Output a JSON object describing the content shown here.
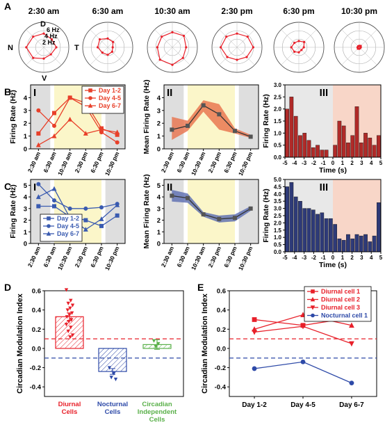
{
  "panel_letters": {
    "A": "A",
    "B": "B",
    "C": "C",
    "D": "D",
    "E": "E"
  },
  "panel_A": {
    "times": [
      "2:30 am",
      "6:30 am",
      "10:30 am",
      "2:30 pm",
      "6:30 pm",
      "10:30 pm"
    ],
    "directions": {
      "D": "D",
      "V": "V",
      "N": "N",
      "T": "T"
    },
    "rings": [
      "6 Hz",
      "4 Hz",
      "2 Hz"
    ],
    "color": "#e8202a"
  },
  "chart_data": [
    {
      "id": "B-I",
      "type": "line",
      "roman": "I",
      "ylabel": "Firing Rate (Hz)",
      "ylim": [
        0,
        5
      ],
      "yticks": [
        "0",
        "1",
        "2",
        "3",
        "4"
      ],
      "categories": [
        "2:30 am",
        "6:30 am",
        "10:30 am",
        "2:30 pm",
        "6:30 pm",
        "10:30 pm"
      ],
      "series": [
        {
          "name": "Day 1-2",
          "marker": "square",
          "color": "#e8402a",
          "values": [
            1.2,
            2.8,
            4.0,
            3.6,
            1.6,
            1.1
          ]
        },
        {
          "name": "Day 4-5",
          "marker": "circle",
          "color": "#e8402a",
          "values": [
            3.0,
            1.8,
            4.0,
            3.3,
            1.3,
            0.5
          ]
        },
        {
          "name": "Day 6-7",
          "marker": "triangle",
          "color": "#e8402a",
          "values": [
            0.3,
            1.0,
            2.3,
            1.2,
            1.5,
            1.3
          ]
        }
      ]
    },
    {
      "id": "B-II",
      "type": "line",
      "roman": "II",
      "ylabel": "Mean Firing Rate (Hz)",
      "ylim": [
        0,
        5
      ],
      "yticks": [
        "0",
        "1",
        "2",
        "3",
        "4"
      ],
      "categories": [
        "2:30 am",
        "6:30 am",
        "10:30 am",
        "2:30 pm",
        "6:30 pm",
        "10:30 pm"
      ],
      "series": [
        {
          "color": "#333333",
          "band": "#e8704a",
          "values": [
            1.5,
            1.8,
            3.4,
            2.7,
            1.4,
            0.95
          ],
          "lower": [
            0.7,
            1.4,
            2.9,
            1.5,
            1.2,
            0.85
          ],
          "upper": [
            2.5,
            2.2,
            3.8,
            3.5,
            1.6,
            1.1
          ]
        }
      ]
    },
    {
      "id": "B-III",
      "type": "bar",
      "roman": "III",
      "ylabel": "Firing Rate (Hz)",
      "xlabel": "Time (s)",
      "ylim": [
        0,
        3.0
      ],
      "yticks": [
        "0.0",
        "0.5",
        "1.0",
        "1.5",
        "2.0",
        "2.5",
        "3.0"
      ],
      "xticks": [
        "-5",
        "-4",
        "-3",
        "-2",
        "-1",
        "0",
        "1",
        "2",
        "3",
        "4",
        "5"
      ],
      "color": "#b02a28",
      "values": [
        2.0,
        2.5,
        1.7,
        0.9,
        1.0,
        0.7,
        0.4,
        0.5,
        0.3,
        0.3,
        0.0,
        0.5,
        1.5,
        1.3,
        0.6,
        0.9,
        2.1,
        0.6,
        1.0,
        0.8,
        0.5,
        0.9
      ]
    },
    {
      "id": "C-I",
      "type": "line",
      "roman": "I",
      "ylabel": "Firing Rate (Hz)",
      "ylim": [
        0,
        5.5
      ],
      "yticks": [
        "0",
        "1",
        "2",
        "3",
        "4",
        "5"
      ],
      "categories": [
        "2:30 am",
        "6:30 am",
        "10:30 am",
        "2:30 pm",
        "6:30 pm",
        "10:30 pm"
      ],
      "series": [
        {
          "name": "Day 1-2",
          "marker": "square",
          "color": "#3a5bb0",
          "values": [
            3.2,
            3.2,
            2.3,
            2.0,
            1.5,
            2.4
          ]
        },
        {
          "name": "Day 4-5",
          "marker": "circle",
          "color": "#3a5bb0",
          "values": [
            5.1,
            3.7,
            3.0,
            3.0,
            3.1,
            3.4
          ]
        },
        {
          "name": "Day 6-7",
          "marker": "triangle",
          "color": "#3a5bb0",
          "values": [
            4.0,
            4.7,
            2.2,
            1.2,
            2.1,
            3.3
          ]
        }
      ]
    },
    {
      "id": "C-II",
      "type": "line",
      "roman": "II",
      "ylabel": "Mean Firing Rate (Hz)",
      "ylim": [
        0,
        5.5
      ],
      "yticks": [
        "0",
        "1",
        "2",
        "3",
        "4",
        "5"
      ],
      "categories": [
        "2:30 am",
        "6:30 am",
        "10:30 am",
        "2:30 pm",
        "6:30 pm",
        "10:30 pm"
      ],
      "series": [
        {
          "color": "#333333",
          "band": "#5a6bb0",
          "values": [
            4.1,
            3.9,
            2.5,
            2.1,
            2.2,
            3.0
          ],
          "lower": [
            3.6,
            3.5,
            2.3,
            1.8,
            1.9,
            2.8
          ],
          "upper": [
            4.6,
            4.3,
            2.7,
            2.4,
            2.5,
            3.2
          ]
        }
      ]
    },
    {
      "id": "C-III",
      "type": "bar",
      "roman": "III",
      "ylabel": "Firing Rate (Hz)",
      "xlabel": "Time (s)",
      "ylim": [
        0,
        5.0
      ],
      "yticks": [
        "0.0",
        "0.5",
        "1.0",
        "1.5",
        "2.0",
        "2.5",
        "3.0",
        "3.5",
        "4.0",
        "4.5",
        "5.0"
      ],
      "xticks": [
        "-5",
        "-4",
        "-3",
        "-2",
        "-1",
        "0",
        "1",
        "2",
        "3",
        "4",
        "5"
      ],
      "color": "#2e3a78",
      "values": [
        4.5,
        4.8,
        3.8,
        3.5,
        3.0,
        3.0,
        2.9,
        2.6,
        2.7,
        2.3,
        2.3,
        1.9,
        0.9,
        0.8,
        1.2,
        0.9,
        1.2,
        1.1,
        1.2,
        0.7,
        1.1,
        3.4
      ]
    },
    {
      "id": "D",
      "type": "bar",
      "ylabel": "Circadian Modulation Index",
      "ylim": [
        -0.5,
        0.6
      ],
      "yticks": [
        "-0.4",
        "-0.2",
        "0.0",
        "0.2",
        "0.4",
        "0.6"
      ],
      "categories": [
        "Diurnal\nCells",
        "Nocturnal\nCells",
        "Circadian\nIndependent\nCells"
      ],
      "values": [
        0.33,
        -0.24,
        0.04
      ],
      "errors": [
        0.04,
        0.03,
        0.05
      ],
      "colors": [
        "#e8202a",
        "#2e4aa8",
        "#5ab04a"
      ],
      "thresholds": [
        0.1,
        -0.1
      ],
      "points": [
        [
          0.61,
          0.5,
          0.47,
          0.45,
          0.42,
          0.4,
          0.37,
          0.35,
          0.33,
          0.3,
          0.28,
          0.25,
          0.22,
          0.18,
          0.14,
          0.12
        ],
        [
          -0.2,
          -0.26,
          -0.3,
          -0.32
        ],
        [
          0.08,
          0.05,
          0.02
        ]
      ]
    },
    {
      "id": "E",
      "type": "line",
      "ylabel": "Circadian Modulation Index",
      "ylim": [
        -0.5,
        0.6
      ],
      "yticks": [
        "-0.4",
        "-0.2",
        "0.0",
        "0.2",
        "0.4",
        "0.6"
      ],
      "categories": [
        "Day 1-2",
        "Day 4-5",
        "Day 6-7"
      ],
      "thresholds": [
        0.1,
        -0.1
      ],
      "series": [
        {
          "name": "Diurnal cell 1",
          "marker": "square",
          "color": "#e8202a",
          "values": [
            0.3,
            0.24,
            0.32
          ]
        },
        {
          "name": "Diurnal cell 2",
          "marker": "triangle",
          "color": "#e8202a",
          "values": [
            0.2,
            0.35,
            0.24
          ]
        },
        {
          "name": "Diurnal cell 3",
          "marker": "tridown",
          "color": "#e8202a",
          "values": [
            0.17,
            0.23,
            0.05
          ]
        },
        {
          "name": "Nocturnal cell 1",
          "marker": "circle",
          "color": "#2e4aa8",
          "values": [
            -0.21,
            -0.14,
            -0.36
          ]
        }
      ]
    }
  ]
}
